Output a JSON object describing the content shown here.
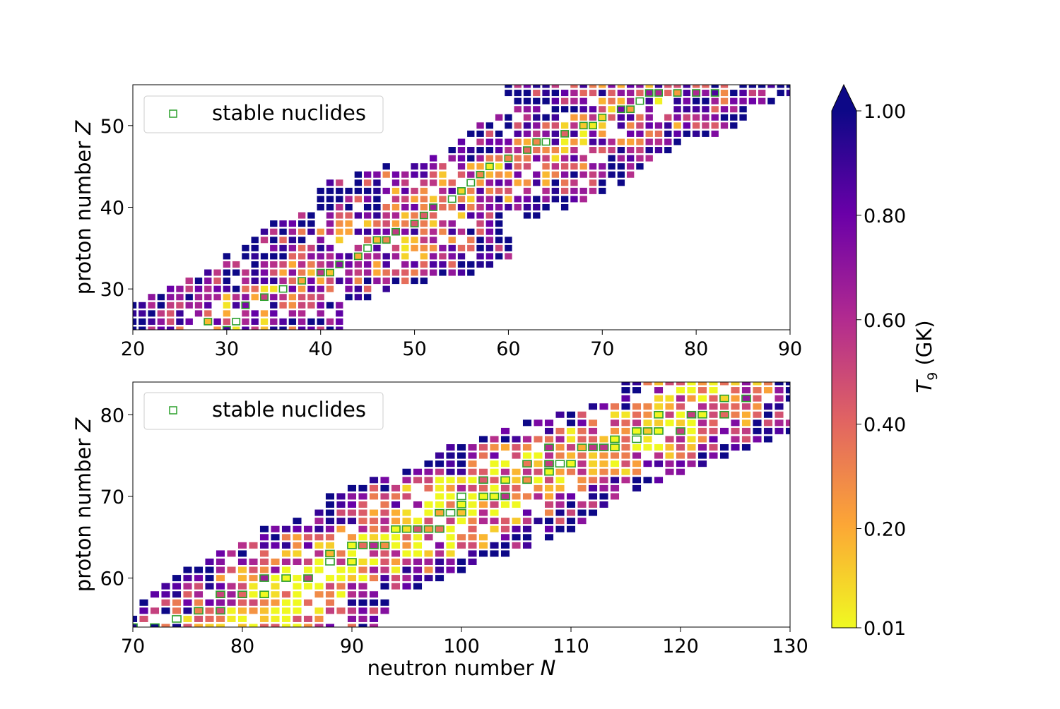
{
  "chart_data": [
    {
      "type": "heatmap",
      "panel": "top",
      "xlim": [
        20,
        90
      ],
      "ylim": [
        25,
        55
      ],
      "xticks": [
        "20",
        "30",
        "40",
        "50",
        "60",
        "70",
        "80",
        "90"
      ],
      "yticks": [
        "30",
        "40",
        "50"
      ],
      "xlabel": "",
      "ylabel": {
        "text": "proton number ",
        "var": "Z"
      },
      "legend": {
        "label": "stable nuclides",
        "position": "top-left",
        "marker_color": "#2ca02c"
      },
      "band": {
        "rows": [
          [
            26,
            20,
            42
          ],
          [
            28,
            20,
            42
          ],
          [
            30,
            24,
            48
          ],
          [
            32,
            28,
            56
          ],
          [
            34,
            30,
            60
          ],
          [
            36,
            33,
            60
          ],
          [
            38,
            35,
            60
          ],
          [
            40,
            40,
            66
          ],
          [
            42,
            40,
            70
          ],
          [
            44,
            42,
            73
          ],
          [
            46,
            52,
            75
          ],
          [
            48,
            55,
            78
          ],
          [
            50,
            57,
            85
          ],
          [
            52,
            61,
            85
          ],
          [
            54,
            60,
            90
          ]
        ]
      },
      "stable_nuclides": [
        [
          30,
          25
        ],
        [
          31,
          26
        ],
        [
          28,
          26
        ],
        [
          32,
          28
        ],
        [
          34,
          29
        ],
        [
          36,
          30
        ],
        [
          38,
          31
        ],
        [
          40,
          32
        ],
        [
          41,
          32
        ],
        [
          42,
          33
        ],
        [
          44,
          34
        ],
        [
          45,
          35
        ],
        [
          46,
          36
        ],
        [
          47,
          36
        ],
        [
          48,
          37
        ],
        [
          50,
          38
        ],
        [
          51,
          39
        ],
        [
          52,
          40
        ],
        [
          54,
          41
        ],
        [
          55,
          42
        ],
        [
          56,
          43
        ],
        [
          57,
          44
        ],
        [
          58,
          45
        ],
        [
          60,
          46
        ],
        [
          62,
          47
        ],
        [
          63,
          48
        ],
        [
          64,
          48
        ],
        [
          66,
          49
        ],
        [
          68,
          50
        ],
        [
          69,
          50
        ],
        [
          70,
          51
        ],
        [
          72,
          52
        ],
        [
          73,
          52
        ],
        [
          74,
          53
        ],
        [
          75,
          54
        ],
        [
          76,
          54
        ],
        [
          78,
          54
        ],
        [
          80,
          54
        ],
        [
          82,
          54
        ]
      ]
    },
    {
      "type": "heatmap",
      "panel": "bottom",
      "xlim": [
        70,
        130
      ],
      "ylim": [
        54,
        84
      ],
      "xticks": [
        "70",
        "80",
        "90",
        "100",
        "110",
        "120",
        "130"
      ],
      "yticks": [
        "60",
        "70",
        "80"
      ],
      "xlabel": {
        "text": "neutron number ",
        "var": "N"
      },
      "ylabel": {
        "text": "proton number ",
        "var": "Z"
      },
      "legend": {
        "label": "stable nuclides",
        "position": "top-left",
        "marker_color": "#2ca02c"
      },
      "band": {
        "rows": [
          [
            55,
            70,
            92
          ],
          [
            58,
            72,
            94
          ],
          [
            60,
            74,
            98
          ],
          [
            62,
            76,
            101
          ],
          [
            64,
            80,
            106
          ],
          [
            66,
            82,
            110
          ],
          [
            68,
            87,
            112
          ],
          [
            70,
            88,
            114
          ],
          [
            72,
            92,
            118
          ],
          [
            74,
            97,
            122
          ],
          [
            76,
            99,
            126
          ],
          [
            78,
            104,
            130
          ],
          [
            80,
            108,
            130
          ],
          [
            82,
            115,
            130
          ]
        ]
      },
      "stable_nuclides": [
        [
          70,
          54
        ],
        [
          72,
          54
        ],
        [
          74,
          55
        ],
        [
          76,
          56
        ],
        [
          78,
          56
        ],
        [
          78,
          58
        ],
        [
          80,
          58
        ],
        [
          82,
          58
        ],
        [
          82,
          60
        ],
        [
          84,
          60
        ],
        [
          86,
          60
        ],
        [
          88,
          62
        ],
        [
          88,
          63
        ],
        [
          90,
          62
        ],
        [
          90,
          64
        ],
        [
          91,
          64
        ],
        [
          92,
          64
        ],
        [
          93,
          64
        ],
        [
          94,
          66
        ],
        [
          95,
          66
        ],
        [
          96,
          66
        ],
        [
          97,
          66
        ],
        [
          98,
          66
        ],
        [
          98,
          68
        ],
        [
          99,
          68
        ],
        [
          100,
          68
        ],
        [
          100,
          69
        ],
        [
          100,
          70
        ],
        [
          102,
          70
        ],
        [
          102,
          72
        ],
        [
          103,
          70
        ],
        [
          104,
          70
        ],
        [
          104,
          72
        ],
        [
          106,
          72
        ],
        [
          106,
          74
        ],
        [
          108,
          73
        ],
        [
          108,
          74
        ],
        [
          109,
          74
        ],
        [
          110,
          74
        ],
        [
          108,
          76
        ],
        [
          111,
          76
        ],
        [
          112,
          76
        ],
        [
          113,
          76
        ],
        [
          114,
          76
        ],
        [
          114,
          77
        ],
        [
          116,
          77
        ],
        [
          116,
          78
        ],
        [
          117,
          78
        ],
        [
          118,
          78
        ],
        [
          120,
          78
        ],
        [
          118,
          80
        ],
        [
          121,
          80
        ],
        [
          122,
          80
        ],
        [
          124,
          80
        ],
        [
          126,
          82
        ],
        [
          124,
          82
        ]
      ]
    }
  ],
  "colorbar": {
    "label_var": "T",
    "label_sub": "9",
    "label_unit": " (GK)",
    "ticks": [
      "0.01",
      "0.20",
      "0.40",
      "0.60",
      "0.80",
      "1.00"
    ],
    "tick_values": [
      0.01,
      0.2,
      0.4,
      0.6,
      0.8,
      1.0
    ],
    "range": [
      0.01,
      1.0
    ],
    "extend": "max",
    "colormap": [
      "#f0f921",
      "#fca636",
      "#e16462",
      "#b12a90",
      "#6a00a8",
      "#0d0887"
    ]
  },
  "colors": {
    "stable_edge": "#2ca02c"
  }
}
